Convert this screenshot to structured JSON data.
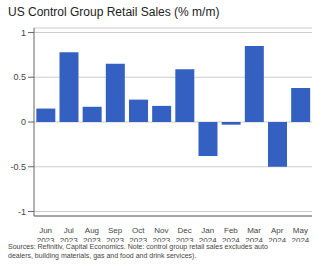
{
  "chart_data": {
    "type": "bar",
    "title": "US Control Group Retail Sales (% m/m)",
    "categories": [
      "Jun\n2023",
      "Jul\n2023",
      "Aug\n2023",
      "Sep\n2023",
      "Oct\n2023",
      "Nov\n2023",
      "Dec\n2023",
      "Jan\n2024",
      "Feb\n2024",
      "Mar\n2024",
      "Apr\n2024",
      "May\n2024"
    ],
    "values": [
      0.15,
      0.78,
      0.17,
      0.65,
      0.25,
      0.18,
      0.59,
      -0.38,
      -0.03,
      0.85,
      -0.5,
      0.38
    ],
    "color": "#3461C1",
    "ylim": [
      -1.05,
      1.05
    ],
    "yticks": [
      -1,
      -0.5,
      0,
      0.5,
      1
    ],
    "grid": true,
    "footnote": "Sources: Refinitiv, Capital Economics. Note: control group retail sales excludes auto\ndealers, building materials, gas and food and drink services)."
  }
}
